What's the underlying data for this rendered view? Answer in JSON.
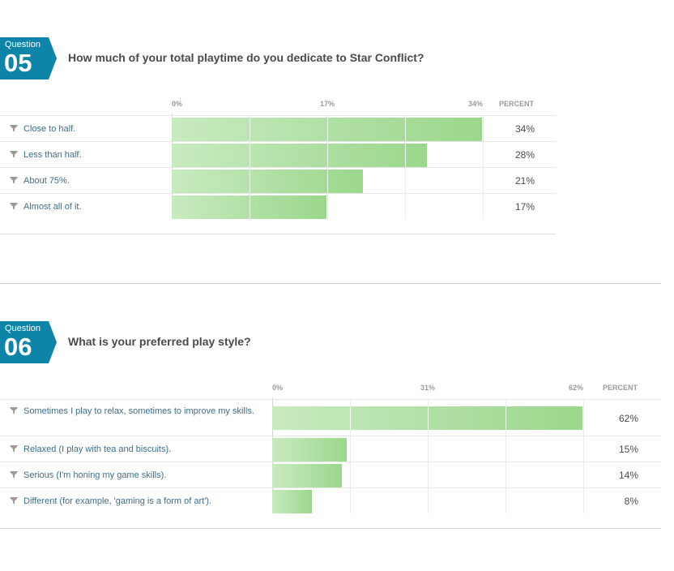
{
  "questions": [
    {
      "label": "Question",
      "number": "05",
      "title": "How much of your total playtime do you dedicate to Star Conflict?",
      "percent_header": "PERCENT",
      "chart_data": {
        "type": "bar",
        "orientation": "horizontal",
        "axis_ticks": [
          "0%",
          "17%",
          "34%"
        ],
        "xlim": [
          0,
          34
        ],
        "categories": [
          "Close to half.",
          "Less than half.",
          "About 75%.",
          "Almost all of it."
        ],
        "values": [
          34,
          28,
          21,
          17
        ],
        "value_labels": [
          "34%",
          "28%",
          "21%",
          "17%"
        ]
      }
    },
    {
      "label": "Question",
      "number": "06",
      "title": "What is your preferred play style?",
      "percent_header": "PERCENT",
      "chart_data": {
        "type": "bar",
        "orientation": "horizontal",
        "axis_ticks": [
          "0%",
          "31%",
          "62%"
        ],
        "xlim": [
          0,
          62
        ],
        "categories": [
          "Sometimes I play to relax, sometimes to improve my skills.",
          "Relaxed (I play with tea and biscuits).",
          "Serious (I'm honing my game skills).",
          "Different (for example, 'gaming is a form of art')."
        ],
        "values": [
          62,
          15,
          14,
          8
        ],
        "value_labels": [
          "62%",
          "15%",
          "14%",
          "8%"
        ]
      }
    }
  ],
  "colors": {
    "badge": "#0e85a8",
    "bar_start": "#c8eac0",
    "bar_end": "#9bd78c",
    "label_text": "#3d6e8a"
  },
  "icons": {
    "row_icon": "filter-icon"
  }
}
